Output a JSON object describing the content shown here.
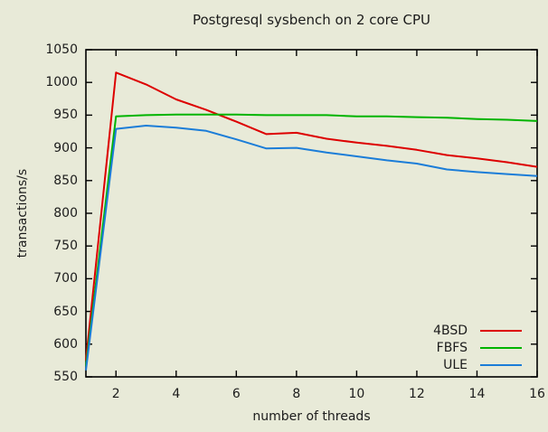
{
  "chart_data": {
    "type": "line",
    "title": "Postgresql sysbench on 2 core CPU",
    "xlabel": "number of threads",
    "ylabel": "transactions/s",
    "xlim": [
      1,
      16
    ],
    "ylim": [
      550,
      1050
    ],
    "xticks": [
      2,
      4,
      6,
      8,
      10,
      12,
      14,
      16
    ],
    "yticks": [
      550,
      600,
      650,
      700,
      750,
      800,
      850,
      900,
      950,
      1000,
      1050
    ],
    "grid": false,
    "legend_position": "inside-bottom-right",
    "x": [
      1,
      2,
      3,
      4,
      5,
      6,
      7,
      8,
      9,
      10,
      11,
      12,
      13,
      14,
      15,
      16
    ],
    "series": [
      {
        "name": "4BSD",
        "color": "#dd0000",
        "values": [
          575,
          1015,
          997,
          974,
          958,
          940,
          921,
          923,
          914,
          908,
          903,
          897,
          889,
          884,
          878,
          871
        ]
      },
      {
        "name": "FBFS",
        "color": "#00b400",
        "values": [
          566,
          948,
          950,
          951,
          951,
          951,
          950,
          950,
          950,
          948,
          948,
          947,
          946,
          944,
          943,
          941
        ]
      },
      {
        "name": "ULE",
        "color": "#1b7dd8",
        "values": [
          560,
          929,
          934,
          931,
          926,
          913,
          899,
          900,
          893,
          887,
          881,
          876,
          867,
          863,
          860,
          857
        ]
      }
    ]
  },
  "colors": {
    "background": "#e8ead8",
    "border": "#000000",
    "text": "#1c1c1c"
  }
}
